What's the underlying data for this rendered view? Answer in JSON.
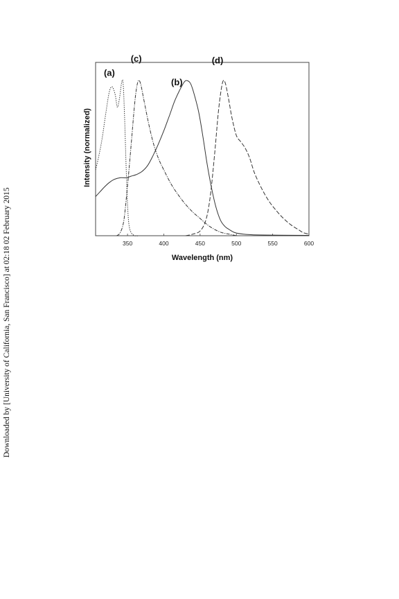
{
  "side_note": "Downloaded by [University of California, San Francisco] at 02:18 02 February 2015",
  "chart_data": {
    "type": "line",
    "xlabel": "Wavelength  (nm)",
    "ylabel": "Intensity  (normalized)",
    "xlim": [
      306,
      600
    ],
    "ylim": [
      0,
      1.0
    ],
    "xticks": [
      350,
      400,
      450,
      500,
      550,
      600
    ],
    "grid": false,
    "series": [
      {
        "name": "(a)",
        "label_at": [
          325,
          1.02
        ],
        "dash": "1.4 1.6",
        "points": [
          [
            306,
            0.42
          ],
          [
            310,
            0.5
          ],
          [
            315,
            0.62
          ],
          [
            320,
            0.78
          ],
          [
            325,
            0.92
          ],
          [
            329,
            0.95
          ],
          [
            333,
            0.9
          ],
          [
            336,
            0.82
          ],
          [
            339,
            0.88
          ],
          [
            342,
            0.98
          ],
          [
            344,
            0.97
          ],
          [
            346,
            0.75
          ],
          [
            348,
            0.45
          ],
          [
            350,
            0.2
          ],
          [
            352,
            0.07
          ],
          [
            355,
            0.02
          ],
          [
            360,
            0.0
          ],
          [
            365,
            0.0
          ]
        ]
      },
      {
        "name": "(b)",
        "label_at": [
          418,
          0.96
        ],
        "dash": "",
        "points": [
          [
            306,
            0.25
          ],
          [
            312,
            0.28
          ],
          [
            318,
            0.31
          ],
          [
            325,
            0.34
          ],
          [
            332,
            0.36
          ],
          [
            340,
            0.37
          ],
          [
            348,
            0.37
          ],
          [
            355,
            0.38
          ],
          [
            362,
            0.39
          ],
          [
            370,
            0.41
          ],
          [
            378,
            0.45
          ],
          [
            385,
            0.51
          ],
          [
            392,
            0.58
          ],
          [
            400,
            0.67
          ],
          [
            408,
            0.77
          ],
          [
            415,
            0.86
          ],
          [
            422,
            0.93
          ],
          [
            428,
            0.98
          ],
          [
            432,
            0.99
          ],
          [
            437,
            0.97
          ],
          [
            442,
            0.9
          ],
          [
            448,
            0.79
          ],
          [
            454,
            0.63
          ],
          [
            460,
            0.45
          ],
          [
            466,
            0.3
          ],
          [
            472,
            0.18
          ],
          [
            478,
            0.1
          ],
          [
            484,
            0.06
          ],
          [
            490,
            0.04
          ],
          [
            498,
            0.02
          ],
          [
            510,
            0.01
          ],
          [
            530,
            0.005
          ],
          [
            560,
            0.003
          ],
          [
            600,
            0.002
          ]
        ]
      },
      {
        "name": "(c)",
        "label_at": [
          362,
          1.11
        ],
        "dash": "5 1.5 1.2 1.5",
        "points": [
          [
            335,
            0.0
          ],
          [
            340,
            0.02
          ],
          [
            345,
            0.1
          ],
          [
            350,
            0.32
          ],
          [
            355,
            0.58
          ],
          [
            359,
            0.8
          ],
          [
            362,
            0.93
          ],
          [
            365,
            0.99
          ],
          [
            368,
            0.97
          ],
          [
            372,
            0.88
          ],
          [
            378,
            0.74
          ],
          [
            385,
            0.6
          ],
          [
            392,
            0.5
          ],
          [
            400,
            0.42
          ],
          [
            410,
            0.33
          ],
          [
            420,
            0.26
          ],
          [
            430,
            0.2
          ],
          [
            440,
            0.15
          ],
          [
            450,
            0.11
          ],
          [
            460,
            0.07
          ],
          [
            470,
            0.04
          ],
          [
            480,
            0.02
          ],
          [
            490,
            0.01
          ],
          [
            500,
            0.0
          ]
        ]
      },
      {
        "name": "(d)",
        "label_at": [
          474,
          1.1
        ],
        "dash": "6 2.5",
        "points": [
          [
            430,
            0.0
          ],
          [
            440,
            0.01
          ],
          [
            450,
            0.03
          ],
          [
            458,
            0.1
          ],
          [
            464,
            0.25
          ],
          [
            470,
            0.52
          ],
          [
            475,
            0.78
          ],
          [
            479,
            0.93
          ],
          [
            482,
            0.99
          ],
          [
            485,
            0.97
          ],
          [
            489,
            0.88
          ],
          [
            494,
            0.75
          ],
          [
            500,
            0.64
          ],
          [
            506,
            0.6
          ],
          [
            512,
            0.56
          ],
          [
            518,
            0.5
          ],
          [
            525,
            0.4
          ],
          [
            535,
            0.3
          ],
          [
            545,
            0.22
          ],
          [
            555,
            0.16
          ],
          [
            565,
            0.11
          ],
          [
            575,
            0.07
          ],
          [
            585,
            0.04
          ],
          [
            592,
            0.02
          ],
          [
            600,
            0.01
          ]
        ]
      }
    ]
  }
}
